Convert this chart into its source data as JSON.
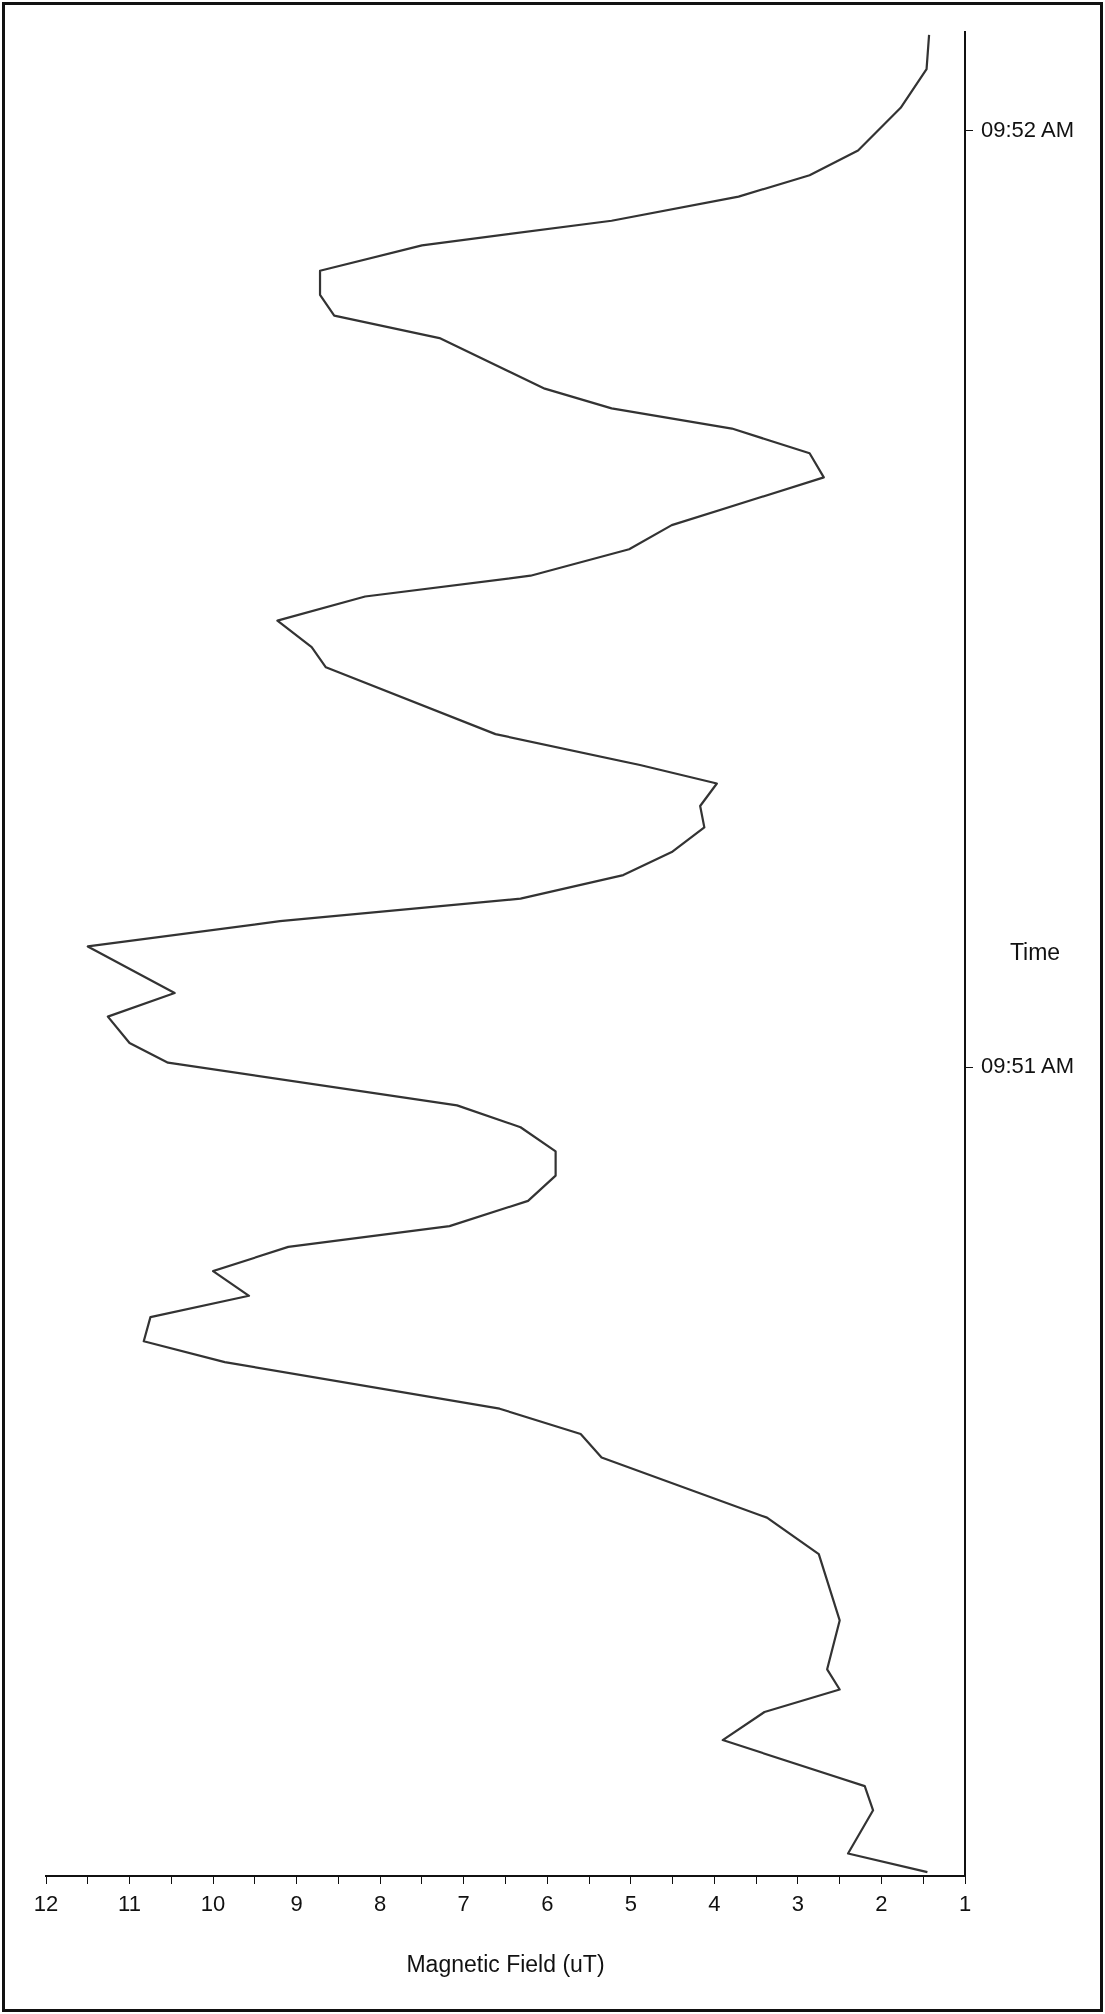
{
  "chart_data": {
    "type": "line",
    "xlabel": "Magnetic Field (uT)",
    "ylabel": "Time",
    "color": "#333333",
    "x": [
      1.45,
      2.4,
      2.1,
      2.2,
      3.9,
      3.4,
      2.5,
      2.65,
      2.5,
      2.75,
      3.37,
      5.35,
      5.6,
      6.57,
      9.86,
      10.83,
      10.75,
      9.57,
      10.0,
      9.1,
      7.17,
      6.23,
      5.9,
      5.9,
      6.32,
      7.08,
      10.54,
      11.0,
      11.26,
      10.46,
      11.5,
      9.2,
      6.32,
      5.09,
      4.51,
      4.12,
      4.17,
      3.97,
      4.89,
      6.62,
      8.65,
      8.82,
      9.23,
      8.18,
      6.2,
      5.02,
      4.51,
      2.69,
      2.86,
      3.79,
      5.23,
      6.03,
      7.29,
      8.55,
      8.72,
      8.72,
      7.5,
      5.23,
      3.71,
      2.86,
      2.28,
      1.77,
      1.46,
      1.43
    ],
    "values": [
      9.83567,
      9.836,
      9.83677,
      9.8372,
      9.83802,
      9.83852,
      9.83892,
      9.83928,
      9.84015,
      9.84133,
      9.84198,
      9.84305,
      9.84347,
      9.84392,
      9.84475,
      9.84512,
      9.84555,
      9.84593,
      9.84637,
      9.8468,
      9.84717,
      9.84762,
      9.84807,
      9.8485,
      9.84893,
      9.84932,
      9.85008,
      9.85043,
      9.8509,
      9.85132,
      9.85215,
      9.8526,
      9.853,
      9.85342,
      9.85383,
      9.85427,
      9.85465,
      9.85505,
      9.85538,
      9.85593,
      9.85712,
      9.85748,
      9.85795,
      9.85838,
      9.85875,
      9.85922,
      9.85965,
      9.8605,
      9.86093,
      9.86137,
      9.86173,
      9.86208,
      9.86298,
      9.86338,
      9.86375,
      9.86418,
      9.86463,
      9.86507,
      9.8655,
      9.86588,
      9.86632,
      9.86708,
      9.86777,
      9.86838
    ],
    "xlim": [
      12,
      1
    ],
    "xticks": [
      12,
      {
        "value": 11.5,
        "label": null
      },
      11,
      {
        "value": 10.5,
        "label": null
      },
      10,
      {
        "value": 9.5,
        "label": null
      },
      9,
      {
        "value": 8.5,
        "label": null
      },
      8,
      {
        "value": 7.5,
        "label": null
      },
      7,
      {
        "value": 6.5,
        "label": null
      },
      6,
      {
        "value": 5.5,
        "label": null
      },
      5,
      {
        "value": 4.5,
        "label": null
      },
      4,
      {
        "value": 3.5,
        "label": null
      },
      3,
      {
        "value": 2.5,
        "label": null
      },
      2,
      {
        "value": 1.5,
        "label": null
      },
      1
    ],
    "ylim": [
      9.8356,
      9.86843
    ],
    "yticks": [
      {
        "value": 9.85,
        "label": "09:51 AM"
      },
      {
        "value": 9.86667,
        "label": "09:52 AM"
      }
    ],
    "grid": false
  }
}
